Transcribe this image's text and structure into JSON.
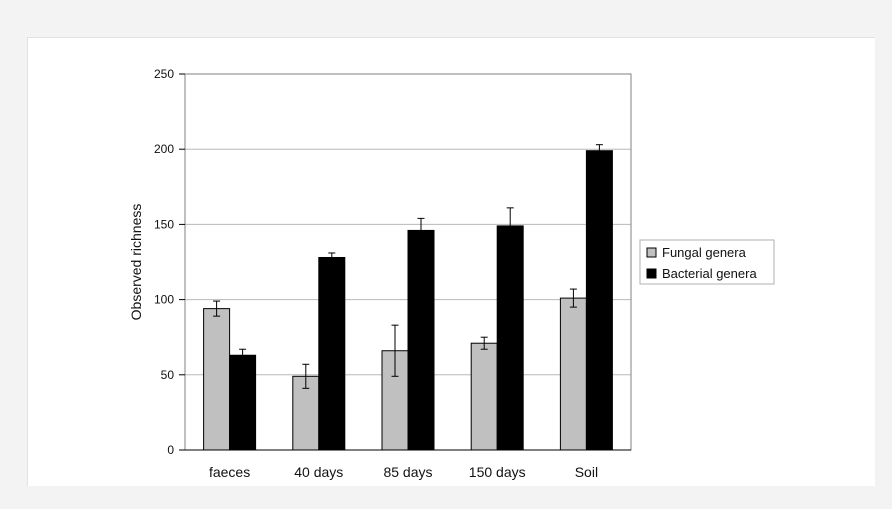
{
  "chart_data": {
    "type": "bar",
    "categories": [
      "faeces",
      "40 days",
      "85 days",
      "150 days",
      "Soil"
    ],
    "series": [
      {
        "name": "Fungal genera",
        "color": "#c0c0c0",
        "values": [
          94,
          49,
          66,
          71,
          101
        ],
        "errors": [
          5,
          8,
          17,
          4,
          6
        ]
      },
      {
        "name": "Bacterial genera",
        "color": "#000000",
        "values": [
          63,
          128,
          146,
          149,
          199
        ],
        "errors": [
          4,
          3,
          8,
          12,
          4
        ]
      }
    ],
    "ylabel": "Observed richness",
    "xlabel": "",
    "ylim": [
      0,
      250
    ],
    "yticks": [
      0,
      50,
      100,
      150,
      200,
      250
    ],
    "grid": true,
    "legend_position": "right"
  }
}
